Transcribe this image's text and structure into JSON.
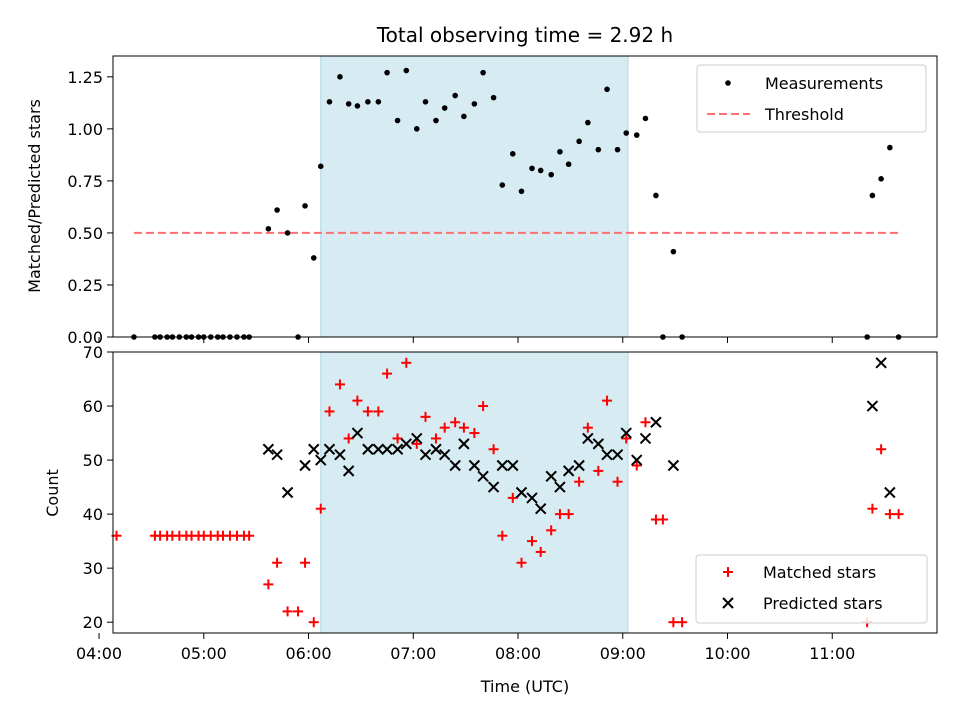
{
  "chart_data": [
    {
      "type": "scatter",
      "title": "Total observing time = 2.92 h",
      "ylabel": "Matched/Predicted stars",
      "xlabel": "",
      "xlim": [
        "04:08",
        "12:00"
      ],
      "ylim": [
        0,
        1.35
      ],
      "yticks": [
        "0.00",
        "0.25",
        "0.50",
        "0.75",
        "1.00",
        "1.25"
      ],
      "legend": "top-right",
      "shaded_interval": {
        "start": "06:07",
        "end": "09:03",
        "color": "#add8e6"
      },
      "threshold": {
        "name": "Threshold",
        "value": 0.5,
        "x_start": "04:20",
        "x_end": "11:38",
        "color": "#ff6f6f"
      },
      "series": [
        {
          "name": "Measurements",
          "color": "#000000",
          "points": [
            [
              "04:20",
              0
            ],
            [
              "04:32",
              0
            ],
            [
              "04:35",
              0
            ],
            [
              "04:39",
              0
            ],
            [
              "04:42",
              0
            ],
            [
              "04:46",
              0
            ],
            [
              "04:50",
              0
            ],
            [
              "04:53",
              0
            ],
            [
              "04:57",
              0
            ],
            [
              "05:00",
              0
            ],
            [
              "05:04",
              0
            ],
            [
              "05:08",
              0
            ],
            [
              "05:11",
              0
            ],
            [
              "05:15",
              0
            ],
            [
              "05:19",
              0
            ],
            [
              "05:23",
              0
            ],
            [
              "05:26",
              0
            ],
            [
              "05:37",
              0.52
            ],
            [
              "05:42",
              0.61
            ],
            [
              "05:48",
              0.5
            ],
            [
              "05:54",
              0
            ],
            [
              "05:58",
              0.63
            ],
            [
              "06:03",
              0.38
            ],
            [
              "06:07",
              0.82
            ],
            [
              "06:12",
              1.13
            ],
            [
              "06:18",
              1.25
            ],
            [
              "06:23",
              1.12
            ],
            [
              "06:28",
              1.11
            ],
            [
              "06:34",
              1.13
            ],
            [
              "06:40",
              1.13
            ],
            [
              "06:45",
              1.27
            ],
            [
              "06:51",
              1.04
            ],
            [
              "06:56",
              1.28
            ],
            [
              "07:02",
              1.0
            ],
            [
              "07:07",
              1.13
            ],
            [
              "07:13",
              1.04
            ],
            [
              "07:18",
              1.1
            ],
            [
              "07:24",
              1.16
            ],
            [
              "07:29",
              1.06
            ],
            [
              "07:35",
              1.12
            ],
            [
              "07:40",
              1.27
            ],
            [
              "07:46",
              1.15
            ],
            [
              "07:51",
              0.73
            ],
            [
              "07:57",
              0.88
            ],
            [
              "08:02",
              0.7
            ],
            [
              "08:08",
              0.81
            ],
            [
              "08:13",
              0.8
            ],
            [
              "08:19",
              0.78
            ],
            [
              "08:24",
              0.89
            ],
            [
              "08:29",
              0.83
            ],
            [
              "08:35",
              0.94
            ],
            [
              "08:40",
              1.03
            ],
            [
              "08:46",
              0.9
            ],
            [
              "08:51",
              1.19
            ],
            [
              "08:57",
              0.9
            ],
            [
              "09:02",
              0.98
            ],
            [
              "09:08",
              0.97
            ],
            [
              "09:13",
              1.05
            ],
            [
              "09:19",
              0.68
            ],
            [
              "09:23",
              0
            ],
            [
              "09:29",
              0.41
            ],
            [
              "09:34",
              0
            ],
            [
              "11:20",
              0
            ],
            [
              "11:23",
              0.68
            ],
            [
              "11:28",
              0.76
            ],
            [
              "11:33",
              0.91
            ],
            [
              "11:38",
              0
            ]
          ]
        }
      ]
    },
    {
      "type": "scatter",
      "title": "",
      "xlabel": "Time (UTC)",
      "ylabel": "Count",
      "xlim": [
        "04:08",
        "12:00"
      ],
      "ylim": [
        18,
        70
      ],
      "xticks": [
        "04:00",
        "05:00",
        "06:00",
        "07:00",
        "08:00",
        "09:00",
        "10:00",
        "11:00"
      ],
      "yticks": [
        "20",
        "30",
        "40",
        "50",
        "60",
        "70"
      ],
      "legend": "bottom-right",
      "shaded_interval": {
        "start": "06:07",
        "end": "09:03",
        "color": "#add8e6"
      },
      "series": [
        {
          "name": "Matched stars",
          "marker": "plus",
          "color": "#ff0000",
          "points": [
            [
              "04:10",
              36
            ],
            [
              "04:32",
              36
            ],
            [
              "04:35",
              36
            ],
            [
              "04:39",
              36
            ],
            [
              "04:42",
              36
            ],
            [
              "04:46",
              36
            ],
            [
              "04:50",
              36
            ],
            [
              "04:53",
              36
            ],
            [
              "04:57",
              36
            ],
            [
              "05:00",
              36
            ],
            [
              "05:04",
              36
            ],
            [
              "05:08",
              36
            ],
            [
              "05:11",
              36
            ],
            [
              "05:15",
              36
            ],
            [
              "05:19",
              36
            ],
            [
              "05:23",
              36
            ],
            [
              "05:26",
              36
            ],
            [
              "05:37",
              27
            ],
            [
              "05:42",
              31
            ],
            [
              "05:48",
              22
            ],
            [
              "05:54",
              22
            ],
            [
              "05:58",
              31
            ],
            [
              "06:03",
              20
            ],
            [
              "06:07",
              41
            ],
            [
              "06:12",
              59
            ],
            [
              "06:18",
              64
            ],
            [
              "06:23",
              54
            ],
            [
              "06:28",
              61
            ],
            [
              "06:34",
              59
            ],
            [
              "06:40",
              59
            ],
            [
              "06:45",
              66
            ],
            [
              "06:51",
              54
            ],
            [
              "06:56",
              68
            ],
            [
              "07:02",
              53
            ],
            [
              "07:07",
              58
            ],
            [
              "07:13",
              54
            ],
            [
              "07:18",
              56
            ],
            [
              "07:24",
              57
            ],
            [
              "07:29",
              56
            ],
            [
              "07:35",
              55
            ],
            [
              "07:40",
              60
            ],
            [
              "07:46",
              52
            ],
            [
              "07:51",
              36
            ],
            [
              "07:57",
              43
            ],
            [
              "08:02",
              31
            ],
            [
              "08:08",
              35
            ],
            [
              "08:13",
              33
            ],
            [
              "08:19",
              37
            ],
            [
              "08:24",
              40
            ],
            [
              "08:29",
              40
            ],
            [
              "08:35",
              46
            ],
            [
              "08:40",
              56
            ],
            [
              "08:46",
              48
            ],
            [
              "08:51",
              61
            ],
            [
              "08:57",
              46
            ],
            [
              "09:02",
              54
            ],
            [
              "09:08",
              49
            ],
            [
              "09:13",
              57
            ],
            [
              "09:19",
              39
            ],
            [
              "09:23",
              39
            ],
            [
              "09:29",
              20
            ],
            [
              "09:34",
              20
            ],
            [
              "11:20",
              20
            ],
            [
              "11:23",
              41
            ],
            [
              "11:28",
              52
            ],
            [
              "11:33",
              40
            ],
            [
              "11:38",
              40
            ]
          ]
        },
        {
          "name": "Predicted stars",
          "marker": "x",
          "color": "#000000",
          "points": [
            [
              "05:37",
              52
            ],
            [
              "05:42",
              51
            ],
            [
              "05:48",
              44
            ],
            [
              "05:58",
              49
            ],
            [
              "06:03",
              52
            ],
            [
              "06:07",
              50
            ],
            [
              "06:12",
              52
            ],
            [
              "06:18",
              51
            ],
            [
              "06:23",
              48
            ],
            [
              "06:28",
              55
            ],
            [
              "06:34",
              52
            ],
            [
              "06:40",
              52
            ],
            [
              "06:45",
              52
            ],
            [
              "06:51",
              52
            ],
            [
              "06:56",
              53
            ],
            [
              "07:02",
              54
            ],
            [
              "07:07",
              51
            ],
            [
              "07:13",
              52
            ],
            [
              "07:18",
              51
            ],
            [
              "07:24",
              49
            ],
            [
              "07:29",
              53
            ],
            [
              "07:35",
              49
            ],
            [
              "07:40",
              47
            ],
            [
              "07:46",
              45
            ],
            [
              "07:51",
              49
            ],
            [
              "07:57",
              49
            ],
            [
              "08:02",
              44
            ],
            [
              "08:08",
              43
            ],
            [
              "08:13",
              41
            ],
            [
              "08:19",
              47
            ],
            [
              "08:24",
              45
            ],
            [
              "08:29",
              48
            ],
            [
              "08:35",
              49
            ],
            [
              "08:40",
              54
            ],
            [
              "08:46",
              53
            ],
            [
              "08:51",
              51
            ],
            [
              "08:57",
              51
            ],
            [
              "09:02",
              55
            ],
            [
              "09:08",
              50
            ],
            [
              "09:13",
              54
            ],
            [
              "09:19",
              57
            ],
            [
              "09:29",
              49
            ],
            [
              "11:23",
              60
            ],
            [
              "11:28",
              68
            ],
            [
              "11:33",
              44
            ]
          ]
        }
      ]
    }
  ]
}
